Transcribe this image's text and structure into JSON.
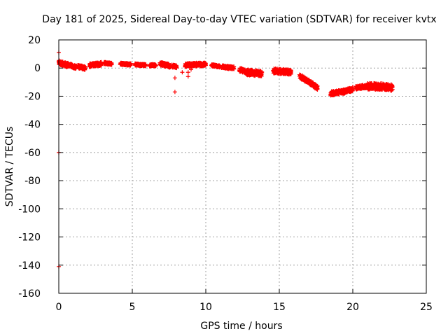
{
  "chart_data": {
    "type": "scatter",
    "title": "Day 181 of 2025, Sidereal Day-to-day VTEC variation (SDTVAR) for receiver kvtx",
    "xlabel": "GPS time / hours",
    "ylabel": "SDTVAR / TECUs",
    "xlim": [
      0,
      25
    ],
    "ylim": [
      -160,
      20
    ],
    "xticks": [
      0,
      5,
      10,
      15,
      20,
      25
    ],
    "yticks": [
      20,
      0,
      -20,
      -40,
      -60,
      -80,
      -100,
      -120,
      -140,
      -160
    ],
    "grid": true,
    "marker": "+",
    "color": "#ff0000",
    "segments": [
      {
        "x0": 0.0,
        "x1": 0.6,
        "y0": 4.0,
        "y1": 2.0,
        "spread": 3.0
      },
      {
        "x0": 0.6,
        "x1": 1.2,
        "y0": 2.5,
        "y1": 0.5,
        "spread": 2.5
      },
      {
        "x0": 1.3,
        "x1": 1.8,
        "y0": 1.0,
        "y1": 0.0,
        "spread": 2.5
      },
      {
        "x0": 2.1,
        "x1": 2.9,
        "y0": 2.0,
        "y1": 3.0,
        "spread": 2.5
      },
      {
        "x0": 3.1,
        "x1": 3.6,
        "y0": 3.5,
        "y1": 3.0,
        "spread": 1.5
      },
      {
        "x0": 4.2,
        "x1": 4.9,
        "y0": 3.0,
        "y1": 2.5,
        "spread": 1.5
      },
      {
        "x0": 5.2,
        "x1": 5.9,
        "y0": 2.5,
        "y1": 2.0,
        "spread": 1.5
      },
      {
        "x0": 6.2,
        "x1": 6.6,
        "y0": 2.0,
        "y1": 2.0,
        "spread": 1.5
      },
      {
        "x0": 6.9,
        "x1": 7.6,
        "y0": 3.0,
        "y1": 1.5,
        "spread": 2.5
      },
      {
        "x0": 7.7,
        "x1": 8.0,
        "y0": 1.5,
        "y1": 1.0,
        "spread": 2.0
      },
      {
        "x0": 8.6,
        "x1": 9.4,
        "y0": 2.0,
        "y1": 2.5,
        "spread": 2.5
      },
      {
        "x0": 9.4,
        "x1": 10.0,
        "y0": 2.5,
        "y1": 2.5,
        "spread": 2.5
      },
      {
        "x0": 10.4,
        "x1": 11.0,
        "y0": 2.0,
        "y1": 1.0,
        "spread": 1.5
      },
      {
        "x0": 11.1,
        "x1": 11.9,
        "y0": 1.0,
        "y1": 0.0,
        "spread": 2.0
      },
      {
        "x0": 12.3,
        "x1": 12.8,
        "y0": -1.0,
        "y1": -3.0,
        "spread": 3.0
      },
      {
        "x0": 12.8,
        "x1": 13.8,
        "y0": -3.0,
        "y1": -4.0,
        "spread": 4.0
      },
      {
        "x0": 14.6,
        "x1": 15.8,
        "y0": -2.0,
        "y1": -3.0,
        "spread": 3.5
      },
      {
        "x0": 16.4,
        "x1": 16.9,
        "y0": -6.0,
        "y1": -9.0,
        "spread": 3.0
      },
      {
        "x0": 16.9,
        "x1": 17.6,
        "y0": -9.0,
        "y1": -14.0,
        "spread": 3.0
      },
      {
        "x0": 18.5,
        "x1": 19.3,
        "y0": -18.0,
        "y1": -17.0,
        "spread": 3.0
      },
      {
        "x0": 19.3,
        "x1": 20.0,
        "y0": -17.0,
        "y1": -15.0,
        "spread": 3.0
      },
      {
        "x0": 20.2,
        "x1": 21.0,
        "y0": -14.0,
        "y1": -13.0,
        "spread": 2.5
      },
      {
        "x0": 21.0,
        "x1": 21.9,
        "y0": -13.0,
        "y1": -13.0,
        "spread": 4.5
      },
      {
        "x0": 21.9,
        "x1": 22.7,
        "y0": -13.0,
        "y1": -14.0,
        "spread": 4.5
      }
    ],
    "outliers": [
      {
        "x": 0.0,
        "y": 11
      },
      {
        "x": 0.0,
        "y": -60
      },
      {
        "x": 0.0,
        "y": -141
      },
      {
        "x": 7.9,
        "y": -7
      },
      {
        "x": 7.9,
        "y": -17
      },
      {
        "x": 8.4,
        "y": -3
      },
      {
        "x": 8.8,
        "y": -3
      },
      {
        "x": 8.8,
        "y": -6
      },
      {
        "x": 9.0,
        "y": -1
      }
    ]
  }
}
